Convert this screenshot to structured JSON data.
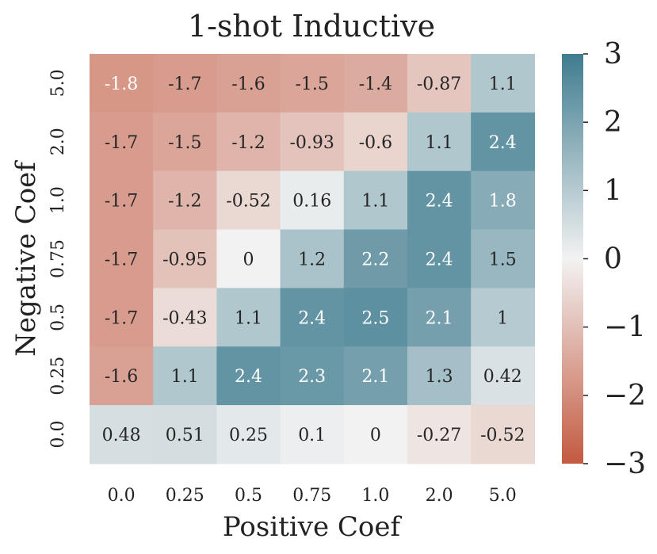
{
  "chart_data": {
    "type": "heatmap",
    "title": "1-shot Inductive",
    "xlabel": "Positive Coef",
    "ylabel": "Negative Coef",
    "x_categories": [
      "0.0",
      "0.25",
      "0.5",
      "0.75",
      "1.0",
      "2.0",
      "5.0"
    ],
    "y_categories": [
      "5.0",
      "2.0",
      "1.0",
      "0.75",
      "0.5",
      "0.25",
      "0.0"
    ],
    "values": [
      [
        -1.8,
        -1.7,
        -1.6,
        -1.5,
        -1.4,
        -0.87,
        1.1
      ],
      [
        -1.7,
        -1.5,
        -1.2,
        -0.93,
        -0.6,
        1.1,
        2.4
      ],
      [
        -1.7,
        -1.2,
        -0.52,
        0.16,
        1.1,
        2.4,
        1.8
      ],
      [
        -1.7,
        -0.95,
        0,
        1.2,
        2.2,
        2.4,
        1.5
      ],
      [
        -1.7,
        -0.43,
        1.1,
        2.4,
        2.5,
        2.1,
        1
      ],
      [
        -1.6,
        1.1,
        2.4,
        2.3,
        2.1,
        1.3,
        0.42
      ],
      [
        0.48,
        0.51,
        0.25,
        0.1,
        0,
        -0.27,
        -0.52
      ]
    ],
    "colorbar": {
      "vmin": -3,
      "vmax": 3,
      "ticks": [
        3,
        2,
        1,
        0,
        -1,
        -2,
        -3
      ],
      "tick_labels": [
        "3",
        "2",
        "1",
        "0",
        "−1",
        "−2",
        "−3"
      ]
    },
    "colors": {
      "negative": "#c35a40",
      "neutral": "#f2f2f2",
      "positive": "#3f7c8f"
    }
  }
}
